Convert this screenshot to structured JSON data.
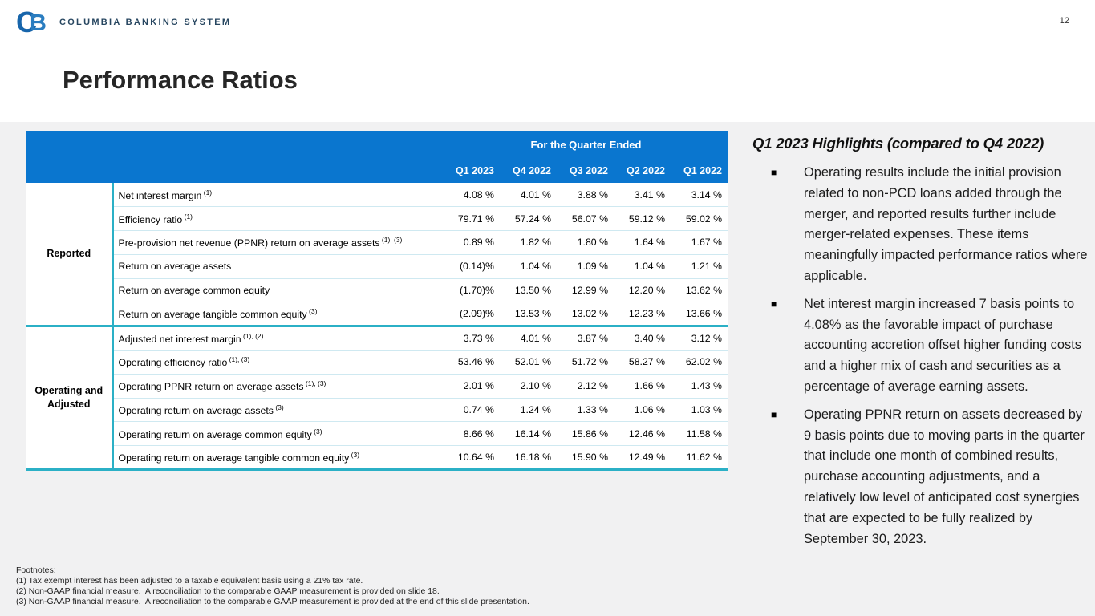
{
  "page": {
    "number": "12",
    "title": "Performance Ratios"
  },
  "brand": {
    "monogram_c": "C",
    "monogram_b": "B",
    "name": "COLUMBIA BANKING SYSTEM"
  },
  "table": {
    "header_title": "For the Quarter Ended",
    "columns": [
      "Q1 2023",
      "Q4 2022",
      "Q3 2022",
      "Q2 2022",
      "Q1 2022"
    ],
    "groups": [
      {
        "label": "Reported",
        "rows": [
          {
            "label": "Net interest margin",
            "sup": "(1)",
            "values": [
              "4.08 %",
              "4.01 %",
              "3.88 %",
              "3.41 %",
              "3.14 %"
            ]
          },
          {
            "label": "Efficiency ratio",
            "sup": "(1)",
            "values": [
              "79.71 %",
              "57.24 %",
              "56.07 %",
              "59.12 %",
              "59.02 %"
            ]
          },
          {
            "label": "Pre-provision net revenue (PPNR) return on average assets",
            "sup": "(1), (3)",
            "values": [
              "0.89 %",
              "1.82 %",
              "1.80 %",
              "1.64 %",
              "1.67 %"
            ]
          },
          {
            "label": "Return on average assets",
            "sup": "",
            "values": [
              "(0.14)%",
              "1.04 %",
              "1.09 %",
              "1.04 %",
              "1.21 %"
            ]
          },
          {
            "label": "Return on average common equity",
            "sup": "",
            "values": [
              "(1.70)%",
              "13.50 %",
              "12.99 %",
              "12.20 %",
              "13.62 %"
            ]
          },
          {
            "label": "Return on average tangible common equity",
            "sup": "(3)",
            "values": [
              "(2.09)%",
              "13.53 %",
              "13.02 %",
              "12.23 %",
              "13.66 %"
            ]
          }
        ]
      },
      {
        "label": "Operating and Adjusted",
        "rows": [
          {
            "label": "Adjusted net interest margin",
            "sup": "(1), (2)",
            "values": [
              "3.73 %",
              "4.01 %",
              "3.87 %",
              "3.40 %",
              "3.12 %"
            ]
          },
          {
            "label": "Operating efficiency ratio",
            "sup": "(1), (3)",
            "values": [
              "53.46 %",
              "52.01 %",
              "51.72 %",
              "58.27 %",
              "62.02 %"
            ]
          },
          {
            "label": "Operating PPNR return on average assets",
            "sup": "(1), (3)",
            "values": [
              "2.01 %",
              "2.10 %",
              "2.12 %",
              "1.66 %",
              "1.43 %"
            ]
          },
          {
            "label": "Operating return on average assets",
            "sup": "(3)",
            "values": [
              "0.74 %",
              "1.24 %",
              "1.33 %",
              "1.06 %",
              "1.03 %"
            ]
          },
          {
            "label": "Operating return on average common equity",
            "sup": "(3)",
            "values": [
              "8.66 %",
              "16.14 %",
              "15.86 %",
              "12.46 %",
              "11.58 %"
            ]
          },
          {
            "label": "Operating return on average tangible common equity",
            "sup": "(3)",
            "values": [
              "10.64 %",
              "16.18 %",
              "15.90 %",
              "12.49 %",
              "11.62 %"
            ]
          }
        ]
      }
    ]
  },
  "highlights": {
    "title": "Q1 2023 Highlights (compared to Q4 2022)",
    "bullet_glyph": "■",
    "bullets": [
      "Operating results include the initial provision related to non-PCD loans added through the merger, and reported results further include merger-related expenses. These items meaningfully impacted performance ratios where applicable.",
      "Net interest margin increased 7 basis points to 4.08% as the favorable impact of purchase accounting accretion offset higher funding costs and a higher mix of cash and securities as a percentage of average earning assets.",
      "Operating PPNR return on assets decreased by 9 basis points due to moving parts in the quarter that include one month of combined results, purchase accounting adjustments, and a relatively low level of anticipated cost synergies that are expected to be fully realized by September 30, 2023."
    ]
  },
  "footnotes": {
    "title": "Footnotes:",
    "items": [
      "(1) Tax exempt interest has been adjusted to a taxable equivalent basis using a 21% tax rate.",
      "(2) Non-GAAP financial measure.  A reconciliation to the comparable GAAP measurement is provided on slide 18.",
      "(3) Non-GAAP financial measure.  A reconciliation to the comparable GAAP measurement is provided at the end of this slide presentation."
    ]
  },
  "colors": {
    "header_blue": "#0a76cf",
    "teal": "#2bb0c6",
    "row_line": "#cfe9f1",
    "bg_gray": "#f1f1f2",
    "logo_c": "#1765ab",
    "logo_b": "#2a7dc0",
    "brand_navy": "#274660"
  }
}
